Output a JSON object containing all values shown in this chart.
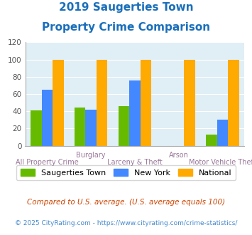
{
  "title_line1": "2019 Saugerties Town",
  "title_line2": "Property Crime Comparison",
  "title_color": "#1a6fbb",
  "categories": [
    "All Property Crime",
    "Burglary",
    "Larceny & Theft",
    "Arson",
    "Motor Vehicle Theft"
  ],
  "category_labels_top": [
    "",
    "Burglary",
    "",
    "Arson",
    ""
  ],
  "category_labels_bottom": [
    "All Property Crime",
    "",
    "Larceny & Theft",
    "",
    "Motor Vehicle Theft"
  ],
  "saugerties": [
    41,
    44,
    46,
    0,
    13
  ],
  "newyork": [
    65,
    42,
    76,
    0,
    30
  ],
  "national": [
    100,
    100,
    100,
    100,
    100
  ],
  "color_saugerties": "#66bb00",
  "color_newyork": "#4488ff",
  "color_national": "#ffaa00",
  "ylim": [
    0,
    120
  ],
  "yticks": [
    0,
    20,
    40,
    60,
    80,
    100,
    120
  ],
  "bg_color": "#e0eef5",
  "legend_labels": [
    "Saugerties Town",
    "New York",
    "National"
  ],
  "footnote1": "Compared to U.S. average. (U.S. average equals 100)",
  "footnote2": "© 2025 CityRating.com - https://www.cityrating.com/crime-statistics/",
  "footnote1_color": "#cc4400",
  "footnote2_color": "#4488cc"
}
